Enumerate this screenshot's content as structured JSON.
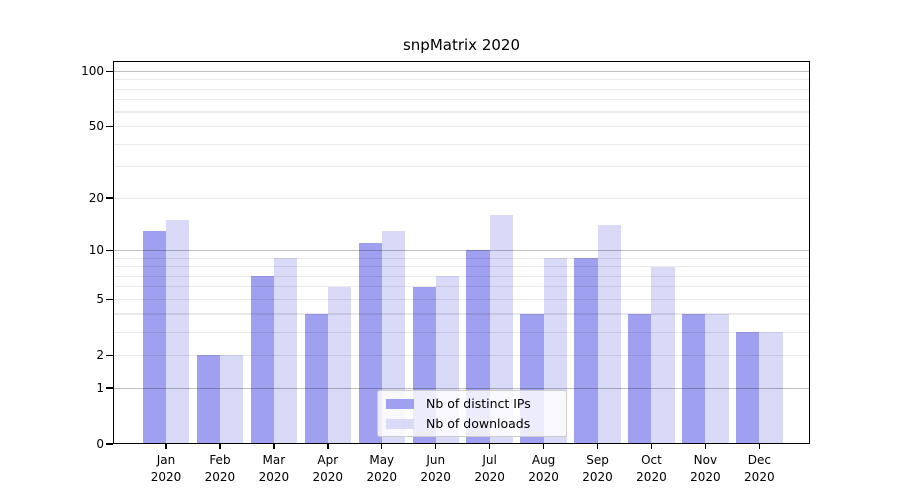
{
  "chart_data": {
    "type": "bar",
    "title": "snpMatrix 2020",
    "categories": [
      "Jan",
      "Feb",
      "Mar",
      "Apr",
      "May",
      "Jun",
      "Jul",
      "Aug",
      "Sep",
      "Oct",
      "Nov",
      "Dec"
    ],
    "year_label": "2020",
    "series": [
      {
        "name": "Nb of distinct IPs",
        "color": "#a0a0f0",
        "values": [
          13,
          2,
          7,
          4,
          11,
          6,
          10,
          4,
          9,
          4,
          4,
          3
        ]
      },
      {
        "name": "Nb of downloads",
        "color": "#d9d9f8",
        "values": [
          15,
          2,
          9,
          6,
          13,
          7,
          16,
          9,
          14,
          8,
          4,
          3
        ]
      }
    ],
    "xlabel": "",
    "ylabel": "",
    "y_axis": {
      "scale": "log1p",
      "tick_labels": [
        "0",
        "1",
        "2",
        "5",
        "10",
        "20",
        "50",
        "100"
      ],
      "ticks": [
        0,
        1,
        2,
        5,
        10,
        20,
        50,
        100
      ],
      "major_gridlines": [
        1,
        10,
        100
      ],
      "minor_gridlines": [
        2,
        3,
        4,
        5,
        6,
        7,
        8,
        9,
        20,
        30,
        40,
        50,
        60,
        70,
        80,
        90
      ],
      "ylim": [
        0,
        113
      ]
    },
    "legend": {
      "position": "lower center",
      "entries": [
        "Nb of distinct IPs",
        "Nb of downloads"
      ]
    },
    "grid": true
  },
  "colors": {
    "bar_ips": "#a0a0f0",
    "bar_downloads": "#d9d9f8",
    "major_grid": "#c2c2c2",
    "minor_grid": "#ebebeb",
    "axis": "#000000",
    "text": "#000000",
    "legend_border": "#cccccc"
  }
}
